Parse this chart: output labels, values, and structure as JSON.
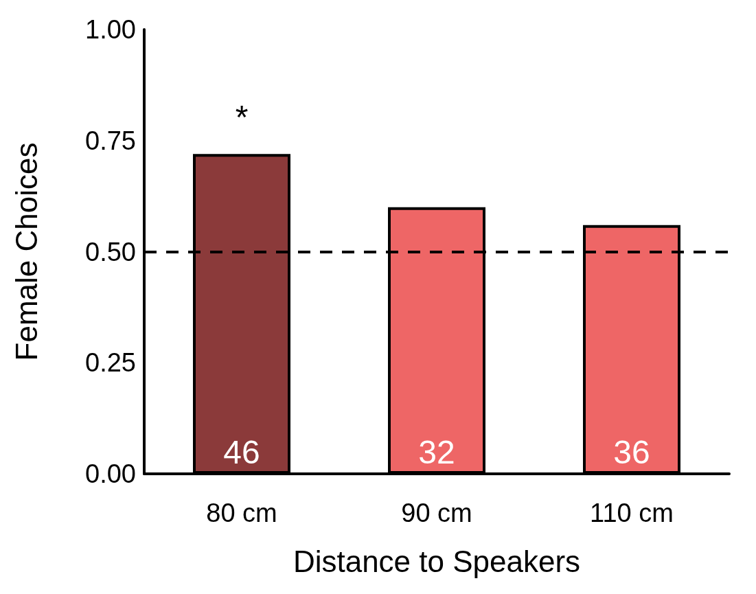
{
  "chart_data": {
    "type": "bar",
    "xlabel": "Distance to Speakers",
    "ylabel": "Female Choices",
    "categories": [
      "80 cm",
      "90 cm",
      "110 cm"
    ],
    "values": [
      0.72,
      0.6,
      0.56
    ],
    "colors": [
      "#8b3a3a",
      "#ee6666",
      "#ee6666"
    ],
    "ylim": [
      0,
      1
    ],
    "yticks": [
      {
        "value": 0,
        "label": "0.00"
      },
      {
        "value": 0.25,
        "label": "0.25"
      },
      {
        "value": 0.5,
        "label": "0.50"
      },
      {
        "value": 0.75,
        "label": "0.75"
      },
      {
        "value": 1,
        "label": "1.00"
      }
    ],
    "grid": false,
    "ref_lines": [
      {
        "axis": "y",
        "value": 0.5,
        "line_style": "dashed",
        "color": "#000000"
      }
    ],
    "annotations": [
      "*",
      "46",
      "32",
      "36"
    ]
  }
}
